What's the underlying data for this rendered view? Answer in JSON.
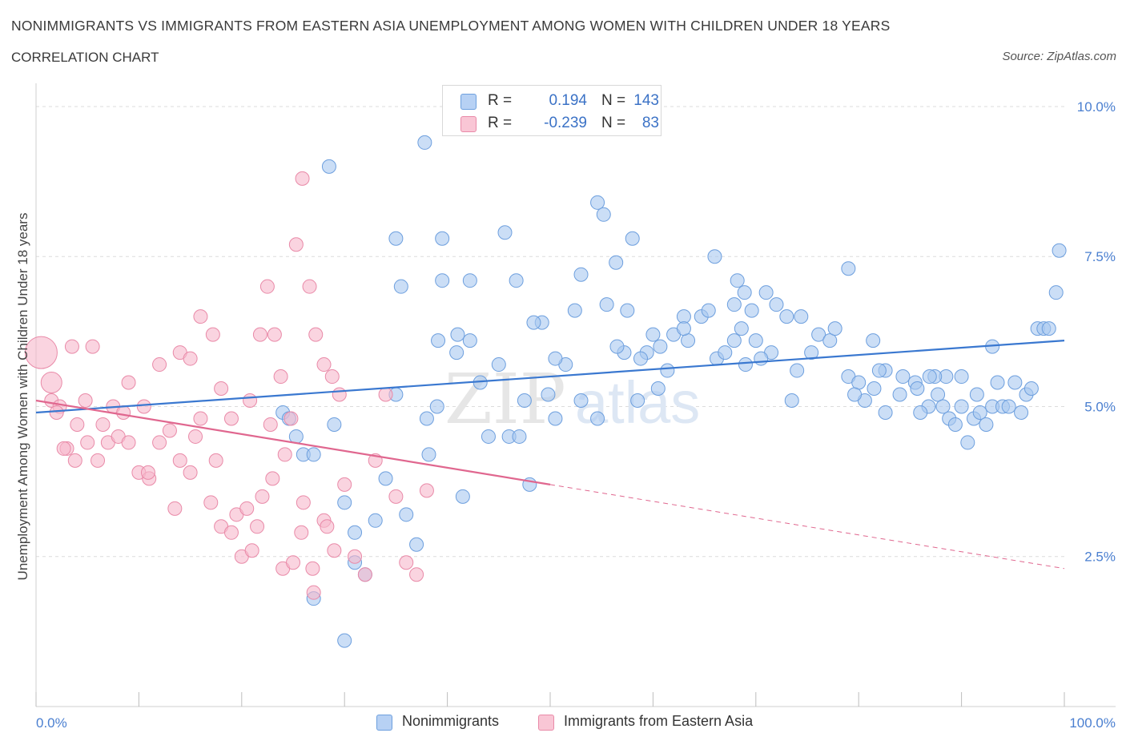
{
  "header": {
    "title": "NONIMMIGRANTS VS IMMIGRANTS FROM EASTERN ASIA UNEMPLOYMENT AMONG WOMEN WITH CHILDREN UNDER 18 YEARS",
    "subtitle": "CORRELATION CHART",
    "source": "Source: ZipAtlas.com"
  },
  "legend": {
    "rows": [
      {
        "r_label": "R =",
        "r_value": "0.194",
        "n_label": "N =",
        "n_value": "143"
      },
      {
        "r_label": "R =",
        "r_value": "-0.239",
        "n_label": "N =",
        "n_value": "83"
      }
    ]
  },
  "bottom_legend": [
    "Nonimmigrants",
    "Immigrants from Eastern Asia"
  ],
  "colors": {
    "blue_fill": "#a9c8f0",
    "blue_stroke": "#6d9fde",
    "blue_line": "#3a78d0",
    "pink_fill": "#f7b8cb",
    "pink_stroke": "#e98aa8",
    "pink_line": "#e0678f",
    "grid": "#dcdcdc",
    "tick_text": "#4a7fd0"
  },
  "chart_data": {
    "type": "scatter",
    "title": "NONIMMIGRANTS VS IMMIGRANTS FROM EASTERN ASIA UNEMPLOYMENT AMONG WOMEN WITH CHILDREN UNDER 18 YEARS",
    "xlabel": "",
    "ylabel": "Unemployment Among Women with Children Under 18 years",
    "xlim": [
      0,
      100
    ],
    "ylim": [
      0,
      10
    ],
    "x_tick_labels": [
      "0.0%",
      "100.0%"
    ],
    "y_ticks": [
      2.5,
      5.0,
      7.5,
      10.0
    ],
    "y_tick_labels": [
      "2.5%",
      "5.0%",
      "7.5%",
      "10.0%"
    ],
    "grid": "horizontal dashed",
    "legend_position": "top-center",
    "watermark": "ZIPatlas",
    "series": [
      {
        "name": "Nonimmigrants",
        "color": "#a9c8f0",
        "points": [
          [
            28.5,
            9.0
          ],
          [
            37.8,
            9.4
          ],
          [
            35.0,
            7.8
          ],
          [
            45.6,
            7.9
          ],
          [
            39.5,
            7.8
          ],
          [
            42.2,
            7.1
          ],
          [
            39.5,
            7.1
          ],
          [
            46.7,
            7.1
          ],
          [
            53.0,
            7.2
          ],
          [
            56.4,
            7.4
          ],
          [
            55.2,
            8.2
          ],
          [
            54.6,
            8.4
          ],
          [
            58.0,
            7.8
          ],
          [
            66.0,
            7.5
          ],
          [
            68.2,
            7.1
          ],
          [
            79.0,
            7.3
          ],
          [
            73.5,
            5.1
          ],
          [
            68.9,
            6.9
          ],
          [
            67.9,
            6.7
          ],
          [
            63.0,
            6.5
          ],
          [
            57.5,
            6.6
          ],
          [
            55.5,
            6.7
          ],
          [
            52.4,
            6.6
          ],
          [
            49.2,
            6.4
          ],
          [
            48.4,
            6.4
          ],
          [
            42.2,
            6.1
          ],
          [
            41.0,
            6.2
          ],
          [
            39.1,
            6.1
          ],
          [
            40.9,
            5.9
          ],
          [
            45.0,
            5.7
          ],
          [
            35.5,
            7.0
          ],
          [
            35.0,
            5.2
          ],
          [
            39.0,
            5.0
          ],
          [
            38.0,
            4.8
          ],
          [
            43.2,
            5.4
          ],
          [
            47.5,
            5.1
          ],
          [
            49.8,
            5.2
          ],
          [
            58.5,
            5.1
          ],
          [
            50.5,
            4.8
          ],
          [
            60.0,
            6.2
          ],
          [
            60.7,
            6.0
          ],
          [
            62.0,
            6.2
          ],
          [
            63.4,
            6.1
          ],
          [
            64.7,
            6.5
          ],
          [
            65.4,
            6.6
          ],
          [
            66.2,
            5.8
          ],
          [
            67.9,
            6.1
          ],
          [
            68.6,
            6.3
          ],
          [
            69.6,
            6.6
          ],
          [
            70.0,
            6.1
          ],
          [
            71.0,
            6.9
          ],
          [
            72.0,
            6.7
          ],
          [
            73.0,
            6.5
          ],
          [
            74.4,
            6.5
          ],
          [
            75.4,
            5.9
          ],
          [
            74.0,
            5.6
          ],
          [
            71.5,
            5.9
          ],
          [
            70.5,
            5.8
          ],
          [
            69.0,
            5.7
          ],
          [
            67.0,
            5.9
          ],
          [
            63.0,
            6.3
          ],
          [
            59.4,
            5.9
          ],
          [
            61.4,
            5.6
          ],
          [
            57.2,
            5.9
          ],
          [
            60.5,
            5.3
          ],
          [
            58.8,
            5.8
          ],
          [
            56.5,
            6.0
          ],
          [
            54.6,
            4.8
          ],
          [
            53.0,
            5.1
          ],
          [
            51.5,
            5.7
          ],
          [
            50.5,
            5.8
          ],
          [
            76.1,
            6.2
          ],
          [
            77.2,
            6.1
          ],
          [
            77.7,
            6.3
          ],
          [
            79.0,
            5.5
          ],
          [
            80.0,
            5.4
          ],
          [
            80.6,
            5.1
          ],
          [
            79.6,
            5.2
          ],
          [
            81.4,
            6.1
          ],
          [
            82.6,
            5.6
          ],
          [
            84.3,
            5.5
          ],
          [
            85.5,
            5.4
          ],
          [
            87.7,
            5.2
          ],
          [
            86.8,
            5.0
          ],
          [
            85.7,
            5.3
          ],
          [
            86.0,
            4.9
          ],
          [
            84.0,
            5.2
          ],
          [
            82.6,
            4.9
          ],
          [
            81.5,
            5.3
          ],
          [
            82.0,
            5.6
          ],
          [
            88.2,
            5.0
          ],
          [
            88.8,
            4.8
          ],
          [
            89.4,
            4.7
          ],
          [
            90.0,
            5.0
          ],
          [
            90.6,
            4.4
          ],
          [
            91.2,
            4.8
          ],
          [
            91.8,
            4.9
          ],
          [
            92.4,
            4.7
          ],
          [
            93.0,
            5.0
          ],
          [
            93.5,
            5.4
          ],
          [
            94.0,
            5.0
          ],
          [
            94.6,
            5.0
          ],
          [
            95.2,
            5.4
          ],
          [
            95.8,
            4.9
          ],
          [
            96.3,
            5.2
          ],
          [
            96.8,
            5.3
          ],
          [
            97.4,
            6.3
          ],
          [
            98.0,
            6.3
          ],
          [
            98.5,
            6.3
          ],
          [
            99.2,
            6.9
          ],
          [
            99.5,
            7.6
          ],
          [
            93.0,
            6.0
          ],
          [
            91.5,
            5.2
          ],
          [
            90.0,
            5.5
          ],
          [
            88.5,
            5.5
          ],
          [
            87.4,
            5.5
          ],
          [
            86.9,
            5.5
          ],
          [
            31.0,
            2.4
          ],
          [
            27.0,
            1.8
          ],
          [
            29.0,
            4.7
          ],
          [
            24.0,
            4.9
          ],
          [
            24.6,
            4.8
          ],
          [
            25.3,
            4.5
          ],
          [
            26.0,
            4.2
          ],
          [
            27.0,
            4.2
          ],
          [
            30.0,
            3.4
          ],
          [
            31.0,
            2.9
          ],
          [
            32.0,
            2.2
          ],
          [
            33.0,
            3.1
          ],
          [
            34.0,
            3.8
          ],
          [
            36.0,
            3.2
          ],
          [
            37.0,
            2.7
          ],
          [
            38.2,
            4.2
          ],
          [
            41.5,
            3.5
          ],
          [
            44.0,
            4.5
          ],
          [
            46.0,
            4.5
          ],
          [
            47.0,
            4.5
          ],
          [
            48.0,
            3.7
          ],
          [
            30.0,
            1.1
          ]
        ]
      },
      {
        "name": "Immigrants from Eastern Asia",
        "color": "#f7b8cb",
        "points": [
          [
            0.5,
            5.9
          ],
          [
            1.5,
            5.4
          ],
          [
            3.5,
            6.0
          ],
          [
            5.5,
            6.0
          ],
          [
            1.5,
            5.1
          ],
          [
            2.3,
            5.0
          ],
          [
            4.8,
            5.1
          ],
          [
            7.5,
            5.0
          ],
          [
            9.0,
            5.4
          ],
          [
            10.5,
            5.0
          ],
          [
            12.0,
            5.7
          ],
          [
            14.0,
            5.9
          ],
          [
            15.0,
            5.8
          ],
          [
            16.0,
            6.5
          ],
          [
            17.2,
            6.2
          ],
          [
            18.0,
            5.3
          ],
          [
            19.0,
            4.8
          ],
          [
            20.8,
            5.1
          ],
          [
            21.8,
            6.2
          ],
          [
            22.5,
            7.0
          ],
          [
            23.2,
            6.2
          ],
          [
            23.8,
            5.5
          ],
          [
            24.8,
            4.8
          ],
          [
            25.3,
            7.7
          ],
          [
            25.9,
            8.8
          ],
          [
            26.6,
            7.0
          ],
          [
            27.2,
            6.2
          ],
          [
            28.0,
            5.7
          ],
          [
            28.8,
            5.5
          ],
          [
            29.5,
            5.2
          ],
          [
            2.0,
            4.9
          ],
          [
            3.0,
            4.3
          ],
          [
            4.0,
            4.7
          ],
          [
            5.0,
            4.4
          ],
          [
            6.0,
            4.1
          ],
          [
            7.0,
            4.4
          ],
          [
            8.0,
            4.5
          ],
          [
            9.0,
            4.4
          ],
          [
            10.0,
            3.9
          ],
          [
            11.0,
            3.8
          ],
          [
            12.0,
            4.4
          ],
          [
            13.0,
            4.6
          ],
          [
            14.0,
            4.1
          ],
          [
            15.0,
            3.9
          ],
          [
            16.0,
            4.8
          ],
          [
            17.0,
            3.4
          ],
          [
            18.0,
            3.0
          ],
          [
            19.0,
            2.9
          ],
          [
            20.0,
            2.5
          ],
          [
            21.0,
            2.6
          ],
          [
            22.0,
            3.5
          ],
          [
            23.0,
            3.8
          ],
          [
            24.0,
            2.3
          ],
          [
            25.0,
            2.4
          ],
          [
            26.0,
            3.4
          ],
          [
            27.0,
            1.9
          ],
          [
            28.0,
            3.1
          ],
          [
            29.0,
            2.6
          ],
          [
            30.0,
            3.7
          ],
          [
            31.0,
            2.5
          ],
          [
            32.0,
            2.2
          ],
          [
            33.0,
            4.1
          ],
          [
            34.0,
            5.2
          ],
          [
            35.0,
            3.5
          ],
          [
            36.0,
            2.4
          ],
          [
            37.0,
            2.2
          ],
          [
            38.0,
            3.6
          ],
          [
            2.7,
            4.3
          ],
          [
            3.8,
            4.1
          ],
          [
            6.5,
            4.7
          ],
          [
            8.5,
            4.9
          ],
          [
            10.9,
            3.9
          ],
          [
            13.5,
            3.3
          ],
          [
            15.5,
            4.5
          ],
          [
            17.5,
            4.1
          ],
          [
            19.5,
            3.2
          ],
          [
            20.5,
            3.3
          ],
          [
            21.5,
            3.0
          ],
          [
            22.8,
            4.7
          ],
          [
            24.2,
            4.2
          ],
          [
            25.8,
            2.9
          ],
          [
            26.9,
            2.3
          ],
          [
            28.3,
            3.0
          ]
        ]
      }
    ],
    "trend_lines": [
      {
        "series": "Nonimmigrants",
        "from": [
          0,
          4.9
        ],
        "to": [
          100,
          6.1
        ],
        "style": "solid"
      },
      {
        "series": "Immigrants from Eastern Asia",
        "from": [
          0,
          5.1
        ],
        "to": [
          50,
          3.7
        ],
        "style": "solid"
      },
      {
        "series": "Immigrants from Eastern Asia",
        "from": [
          50,
          3.7
        ],
        "to": [
          100,
          2.3
        ],
        "style": "dashed"
      }
    ]
  }
}
